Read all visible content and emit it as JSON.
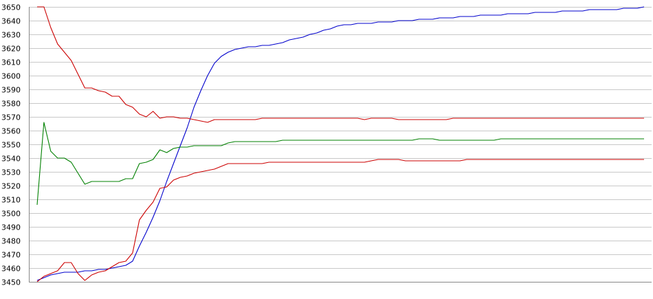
{
  "chart_data": {
    "type": "line",
    "title": "",
    "xlabel": "",
    "ylabel": "",
    "ylim": [
      3450,
      3650
    ],
    "yticks": [
      3450,
      3460,
      3470,
      3480,
      3490,
      3500,
      3510,
      3520,
      3530,
      3540,
      3550,
      3560,
      3570,
      3580,
      3590,
      3600,
      3610,
      3620,
      3630,
      3640,
      3650
    ],
    "grid": true,
    "legend": "none",
    "x": [
      0,
      1,
      2,
      3,
      4,
      5,
      6,
      7,
      8,
      9,
      10,
      11,
      12,
      13,
      14,
      15,
      16,
      17,
      18,
      19,
      20,
      21,
      22,
      23,
      24,
      25,
      26,
      27,
      28,
      29,
      30,
      31,
      32,
      33,
      34,
      35,
      36,
      37,
      38,
      39,
      40,
      41,
      42,
      43,
      44,
      45,
      46,
      47,
      48,
      49,
      50,
      51,
      52,
      53,
      54,
      55,
      56,
      57,
      58,
      59,
      60,
      61,
      62,
      63,
      64,
      65,
      66,
      67,
      68,
      69,
      70,
      71,
      72,
      73,
      74,
      75,
      76,
      77,
      78,
      79,
      80,
      81,
      82,
      83,
      84,
      85,
      86,
      87,
      88,
      89
    ],
    "series": [
      {
        "color": "#0000cc",
        "values": [
          3451,
          3453,
          3455,
          3456,
          3457,
          3457,
          3457,
          3458,
          3458,
          3459,
          3459,
          3460,
          3461,
          3462,
          3465,
          3476,
          3486,
          3497,
          3509,
          3523,
          3536,
          3549,
          3562,
          3577,
          3589,
          3600,
          3609,
          3614,
          3617,
          3619,
          3620,
          3621,
          3621,
          3622,
          3622,
          3623,
          3624,
          3626,
          3627,
          3628,
          3630,
          3631,
          3633,
          3634,
          3636,
          3637,
          3637,
          3638,
          3638,
          3638,
          3639,
          3639,
          3639,
          3640,
          3640,
          3640,
          3641,
          3641,
          3641,
          3642,
          3642,
          3642,
          3643,
          3643,
          3643,
          3644,
          3644,
          3644,
          3644,
          3645,
          3645,
          3645,
          3645,
          3646,
          3646,
          3646,
          3646,
          3647,
          3647,
          3647,
          3647,
          3648,
          3648,
          3648,
          3648,
          3648,
          3649,
          3649,
          3649,
          3650
        ]
      },
      {
        "color": "#cc0000",
        "values": [
          3650,
          3650,
          3635,
          3623,
          3617,
          3611,
          3601,
          3591,
          3591,
          3589,
          3588,
          3585,
          3585,
          3579,
          3577,
          3572,
          3570,
          3574,
          3569,
          3570,
          3570,
          3569,
          3569,
          3568,
          3567,
          3566,
          3568,
          3568,
          3568,
          3568,
          3568,
          3568,
          3568,
          3569,
          3569,
          3569,
          3569,
          3569,
          3569,
          3569,
          3569,
          3569,
          3569,
          3569,
          3569,
          3569,
          3569,
          3569,
          3568,
          3569,
          3569,
          3569,
          3569,
          3568,
          3568,
          3568,
          3568,
          3568,
          3568,
          3568,
          3568,
          3569,
          3569,
          3569,
          3569,
          3569,
          3569,
          3569,
          3569,
          3569,
          3569,
          3569,
          3569,
          3569,
          3569,
          3569,
          3569,
          3569,
          3569,
          3569,
          3569,
          3569,
          3569,
          3569,
          3569,
          3569,
          3569,
          3569,
          3569,
          3569
        ]
      },
      {
        "color": "#008000",
        "values": [
          3506,
          3566,
          3545,
          3540,
          3540,
          3537,
          3529,
          3521,
          3523,
          3523,
          3523,
          3523,
          3523,
          3525,
          3525,
          3536,
          3537,
          3539,
          3546,
          3544,
          3547,
          3548,
          3548,
          3549,
          3549,
          3549,
          3549,
          3549,
          3551,
          3552,
          3552,
          3552,
          3552,
          3552,
          3552,
          3552,
          3553,
          3553,
          3553,
          3553,
          3553,
          3553,
          3553,
          3553,
          3553,
          3553,
          3553,
          3553,
          3553,
          3553,
          3553,
          3553,
          3553,
          3553,
          3553,
          3553,
          3554,
          3554,
          3554,
          3553,
          3553,
          3553,
          3553,
          3553,
          3553,
          3553,
          3553,
          3553,
          3554,
          3554,
          3554,
          3554,
          3554,
          3554,
          3554,
          3554,
          3554,
          3554,
          3554,
          3554,
          3554,
          3554,
          3554,
          3554,
          3554,
          3554,
          3554,
          3554,
          3554,
          3554
        ]
      },
      {
        "color": "#cc0000",
        "values": [
          3450,
          3454,
          3456,
          3458,
          3464,
          3464,
          3456,
          3451,
          3455,
          3457,
          3458,
          3461,
          3464,
          3465,
          3471,
          3495,
          3502,
          3508,
          3518,
          3519,
          3524,
          3526,
          3527,
          3529,
          3530,
          3531,
          3532,
          3534,
          3536,
          3536,
          3536,
          3536,
          3536,
          3536,
          3537,
          3537,
          3537,
          3537,
          3537,
          3537,
          3537,
          3537,
          3537,
          3537,
          3537,
          3537,
          3537,
          3537,
          3537,
          3538,
          3539,
          3539,
          3539,
          3539,
          3538,
          3538,
          3538,
          3538,
          3538,
          3538,
          3538,
          3538,
          3538,
          3539,
          3539,
          3539,
          3539,
          3539,
          3539,
          3539,
          3539,
          3539,
          3539,
          3539,
          3539,
          3539,
          3539,
          3539,
          3539,
          3539,
          3539,
          3539,
          3539,
          3539,
          3539,
          3539,
          3539,
          3539,
          3539,
          3539
        ]
      }
    ]
  }
}
